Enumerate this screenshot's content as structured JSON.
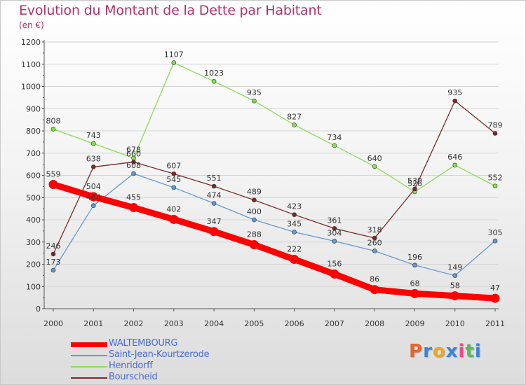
{
  "header": {
    "title": "Evolution du Montant de la Dette par Habitant",
    "unit": "(en €)"
  },
  "logo": {
    "text": "Proxiti",
    "letter_colors": [
      "#e8652a",
      "#3a86d4",
      "#e8a82a",
      "#3a86d4",
      "#e84a8a",
      "#5cb85c",
      "#3a86d4"
    ]
  },
  "chart_data": {
    "type": "line",
    "title": "Evolution du Montant de la Dette par Habitant",
    "subtitle": "(en €)",
    "xlabel": "",
    "ylabel": "",
    "x": [
      "2000",
      "2001",
      "2002",
      "2003",
      "2004",
      "2005",
      "2006",
      "2007",
      "2008",
      "2009",
      "2010",
      "2011"
    ],
    "ylim": [
      0,
      1200
    ],
    "yticks": [
      "0",
      "100",
      "200",
      "300",
      "400",
      "500",
      "600",
      "700",
      "800",
      "900",
      "1000",
      "1100",
      "1200"
    ],
    "grid": "horizontal",
    "legend_position": "bottom-left",
    "series": [
      {
        "name": "WALTEMBOURG",
        "color": "#ff0000",
        "values": [
          559,
          504,
          455,
          402,
          347,
          288,
          222,
          156,
          86,
          68,
          58,
          47
        ],
        "labels": [
          "559",
          "504",
          "455",
          "402",
          "347",
          "288",
          "222",
          "156",
          "86",
          "68",
          "58",
          "47"
        ]
      },
      {
        "name": "Saint-Jean-Kourtzerode",
        "color": "#6699cc",
        "values": [
          173,
          464,
          608,
          545,
          474,
          400,
          345,
          304,
          260,
          196,
          149,
          305
        ],
        "labels": [
          "173",
          "464",
          "608",
          "545",
          "474",
          "400",
          "345",
          "304",
          "260",
          "196",
          "149",
          "305"
        ]
      },
      {
        "name": "Henridorff",
        "color": "#88dd55",
        "values": [
          808,
          743,
          678,
          1107,
          1023,
          935,
          827,
          734,
          640,
          526,
          646,
          552
        ],
        "labels": [
          "808",
          "743",
          "678",
          "1107",
          "1023",
          "935",
          "827",
          "734",
          "640",
          "526",
          "646",
          "552"
        ]
      },
      {
        "name": "Bourscheid",
        "color": "#7a2a2a",
        "values": [
          246,
          638,
          660,
          607,
          551,
          489,
          423,
          361,
          318,
          539,
          935,
          789
        ],
        "labels": [
          "246",
          "638",
          "660",
          "607",
          "551",
          "489",
          "423",
          "361",
          "318",
          "539",
          "935",
          "789"
        ]
      }
    ]
  }
}
